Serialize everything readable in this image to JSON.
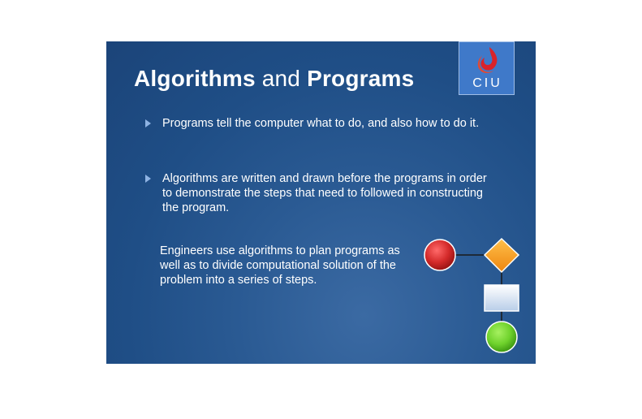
{
  "slide": {
    "title_strong_1": "Algorithms",
    "title_middle": " and ",
    "title_strong_2": "Programs",
    "logo_text": "CIU",
    "bullets": [
      "Programs tell the computer what to do, and also how to do it.",
      "Algorithms are written and drawn before the programs in order to demonstrate the steps that need to followed in constructing the program."
    ],
    "paragraph": "Engineers use algorithms to plan programs as well as to divide computational solution of the problem into a series of steps.",
    "colors": {
      "background": "#1f4e86",
      "start_circle": "#d42a2a",
      "decision_diamond": "#f39a1a",
      "process_rect": "#dde8f6",
      "end_circle": "#6fd22c"
    }
  }
}
